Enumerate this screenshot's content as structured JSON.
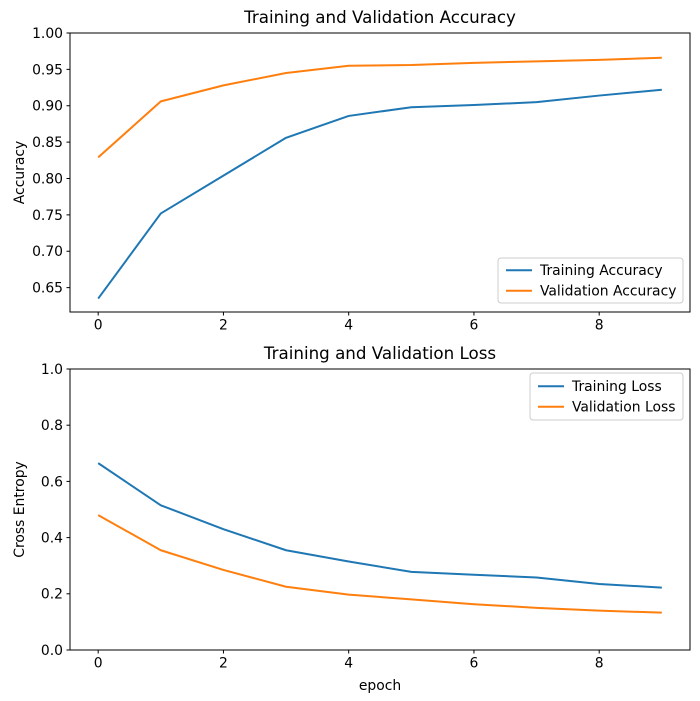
{
  "figure": {
    "background": "#ffffff",
    "line_colors": {
      "series1": "#1f77b4",
      "series2": "#ff7f0e"
    }
  },
  "chart_data": [
    {
      "type": "line",
      "title": "Training and Validation Accuracy",
      "xlabel": "",
      "ylabel": "Accuracy",
      "x": [
        0,
        1,
        2,
        3,
        4,
        5,
        6,
        7,
        8,
        9
      ],
      "series": [
        {
          "name": "Training Accuracy",
          "color": "#1f77b4",
          "values": [
            0.635,
            0.752,
            0.804,
            0.856,
            0.886,
            0.898,
            0.901,
            0.905,
            0.914,
            0.922
          ]
        },
        {
          "name": "Validation Accuracy",
          "color": "#ff7f0e",
          "values": [
            0.829,
            0.906,
            0.928,
            0.945,
            0.955,
            0.956,
            0.959,
            0.961,
            0.963,
            0.966
          ]
        }
      ],
      "xlim": [
        -0.45,
        9.45
      ],
      "ylim": [
        0.6165,
        1.0
      ],
      "xticks": [
        0,
        2,
        4,
        6,
        8
      ],
      "xtick_labels": [
        "0",
        "2",
        "4",
        "6",
        "8"
      ],
      "yticks": [
        0.65,
        0.7,
        0.75,
        0.8,
        0.85,
        0.9,
        0.95,
        1.0
      ],
      "ytick_labels": [
        "0.65",
        "0.70",
        "0.75",
        "0.80",
        "0.85",
        "0.90",
        "0.95",
        "1.00"
      ],
      "grid": false,
      "legend": {
        "loc": "lower right",
        "labels": [
          "Training Accuracy",
          "Validation Accuracy"
        ]
      }
    },
    {
      "type": "line",
      "title": "Training and Validation Loss",
      "xlabel": "epoch",
      "ylabel": "Cross Entropy",
      "x": [
        0,
        1,
        2,
        3,
        4,
        5,
        6,
        7,
        8,
        9
      ],
      "series": [
        {
          "name": "Training Loss",
          "color": "#1f77b4",
          "values": [
            0.665,
            0.515,
            0.43,
            0.355,
            0.315,
            0.278,
            0.268,
            0.258,
            0.235,
            0.222
          ]
        },
        {
          "name": "Validation Loss",
          "color": "#ff7f0e",
          "values": [
            0.48,
            0.355,
            0.285,
            0.225,
            0.197,
            0.18,
            0.163,
            0.15,
            0.14,
            0.133
          ]
        }
      ],
      "xlim": [
        -0.45,
        9.45
      ],
      "ylim": [
        0.0,
        1.0
      ],
      "xticks": [
        0,
        2,
        4,
        6,
        8
      ],
      "xtick_labels": [
        "0",
        "2",
        "4",
        "6",
        "8"
      ],
      "yticks": [
        0.0,
        0.2,
        0.4,
        0.6,
        0.8,
        1.0
      ],
      "ytick_labels": [
        "0.0",
        "0.2",
        "0.4",
        "0.6",
        "0.8",
        "1.0"
      ],
      "grid": false,
      "legend": {
        "loc": "upper right",
        "labels": [
          "Training Loss",
          "Validation Loss"
        ]
      }
    }
  ]
}
